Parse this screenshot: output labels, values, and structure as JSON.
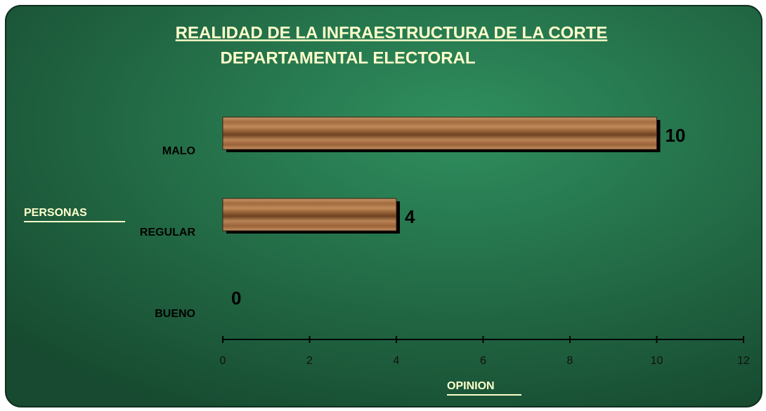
{
  "chart_data": {
    "type": "bar",
    "orientation": "horizontal",
    "title": [
      "REALIDAD DE LA INFRAESTRUCTURA DE LA CORTE",
      "DEPARTAMENTAL ELECTORAL"
    ],
    "xlabel": "OPINION",
    "ylabel": "PERSONAS",
    "categories": [
      "MALO",
      "REGULAR",
      "BUENO"
    ],
    "values": [
      10,
      4,
      0
    ],
    "color": "#a56a3c",
    "xlim": [
      0,
      12
    ],
    "xticks": [
      0,
      2,
      4,
      6,
      8,
      10,
      12
    ]
  }
}
